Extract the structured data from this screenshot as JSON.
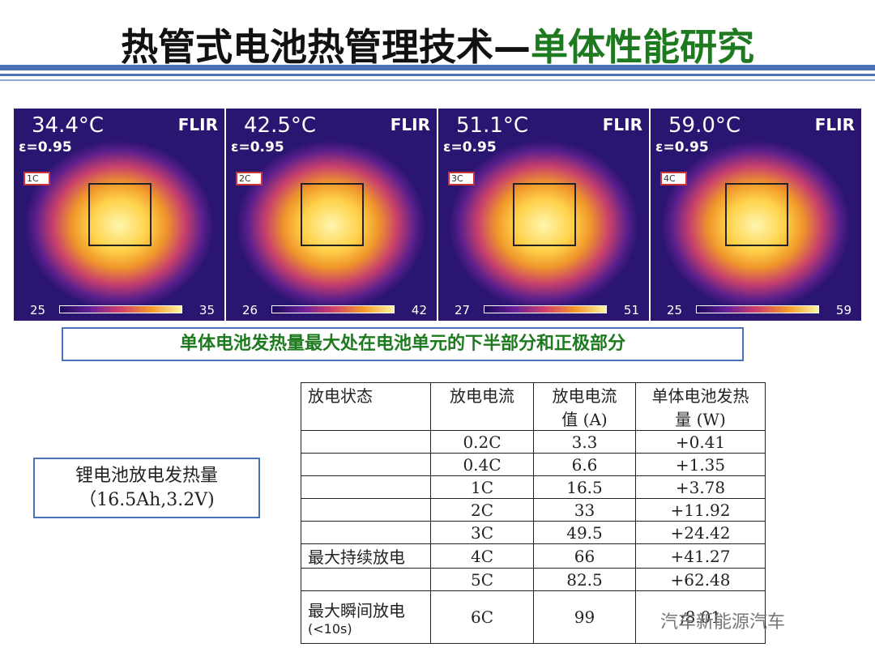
{
  "title": {
    "main": "热管式电池热管理技术",
    "dash": "—",
    "sub": "单体性能研究"
  },
  "thermals": [
    {
      "temp": "34.4",
      "unit": "°C",
      "emissivity": "ε=0.95",
      "brand": "FLIR",
      "tag": "1C",
      "scale_min": "25",
      "scale_max": "35"
    },
    {
      "temp": "42.5",
      "unit": "°C",
      "emissivity": "ε=0.95",
      "brand": "FLIR",
      "tag": "2C",
      "scale_min": "26",
      "scale_max": "42"
    },
    {
      "temp": "51.1",
      "unit": "°C",
      "emissivity": "ε=0.95",
      "brand": "FLIR",
      "tag": "3C",
      "scale_min": "27",
      "scale_max": "51"
    },
    {
      "temp": "59.0",
      "unit": "°C",
      "emissivity": "ε=0.95",
      "brand": "FLIR",
      "tag": "4C",
      "scale_min": "25",
      "scale_max": "59"
    }
  ],
  "note": "单体电池发热量最大处在电池单元的下半部分和正极部分",
  "battery": {
    "line1": "锂电池放电发热量",
    "line2": "（16.5Ah,3.2V)"
  },
  "table": {
    "headers": [
      "放电状态",
      "放电电流",
      "放电电流值 (A)",
      "单体电池发热量 (W)"
    ],
    "header_lines": {
      "h3a": "放电电流",
      "h3b": "值 (A)",
      "h4a": "单体电池发热",
      "h4b": "量 (W)"
    },
    "rows": [
      {
        "state": "",
        "current": "0.2C",
        "value": "3.3",
        "heat": "+0.41"
      },
      {
        "state": "",
        "current": "0.4C",
        "value": "6.6",
        "heat": "+1.35"
      },
      {
        "state": "",
        "current": "1C",
        "value": "16.5",
        "heat": "+3.78"
      },
      {
        "state": "",
        "current": "2C",
        "value": "33",
        "heat": "+11.92"
      },
      {
        "state": "",
        "current": "3C",
        "value": "49.5",
        "heat": "+24.42"
      },
      {
        "state": "最大持续放电",
        "current": "4C",
        "value": "66",
        "heat": "+41.27"
      },
      {
        "state": "",
        "current": "5C",
        "value": "82.5",
        "heat": "+62.48"
      }
    ],
    "last_row": {
      "state": "最大瞬间放电",
      "state_sub": "(<10s)",
      "current": "6C",
      "value": "99",
      "heat": ";8.01"
    }
  },
  "watermark": "汽车新能源汽车"
}
